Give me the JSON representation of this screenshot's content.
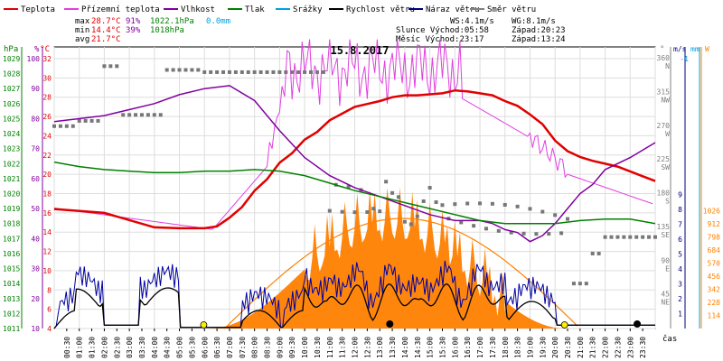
{
  "chart_data": {
    "type": "line",
    "title": "15.8.2017",
    "legend": {
      "placement": "top",
      "items": [
        {
          "label": "Teplota",
          "color": "#e00000"
        },
        {
          "label": "Přízemní teplota",
          "color": "#e040e0"
        },
        {
          "label": "Vlhkost",
          "color": "#8000a0"
        },
        {
          "label": "Tlak",
          "color": "#008000"
        },
        {
          "label": "Srážky",
          "color": "#00a0e0"
        },
        {
          "label": "Rychlost větru",
          "color": "#000000"
        },
        {
          "label": "Náraz větru",
          "color": "#000080"
        },
        {
          "label": "Směr větru",
          "color": "#808080"
        }
      ]
    },
    "stats": {
      "max": {
        "label": "max",
        "temp": "28.7°C",
        "hum": "91%",
        "press": "1022.1hPa",
        "rain": "0.0mm"
      },
      "min": {
        "label": "min",
        "temp": "14.4°C",
        "hum": "39%",
        "press": "1018hPa"
      },
      "avg": {
        "label": "avg",
        "temp": "21.7°C"
      }
    },
    "info": {
      "ws": "WS:4.1m/s",
      "wg": "WG:8.1m/s",
      "sun_rise": "Slunce Východ:05:58",
      "sun_set": "Západ:20:23",
      "moon_rise": "Měsíc  Východ:23:17",
      "moon_set": "Západ:13:24"
    },
    "axes": {
      "hpa_unit": "hPa",
      "pct_unit": "%",
      "temp_unit": "°C",
      "deg_unit": "°",
      "ms_unit": "m/s",
      "mm_unit": "mm",
      "w_unit": "W",
      "time_label": "čas",
      "hpa_ticks": [
        "1029",
        "1028",
        "1027",
        "1026",
        "1025",
        "1024",
        "1023",
        "1022",
        "1021",
        "1020",
        "1019",
        "1018",
        "1017",
        "1016",
        "1015",
        "1014",
        "1013",
        "1012",
        "1011"
      ],
      "pct_ticks": [
        "100",
        "90",
        "80",
        "70",
        "60",
        "50",
        "40",
        "30",
        "20",
        "10"
      ],
      "temp_ticks": [
        "32",
        "30",
        "28",
        "26",
        "24",
        "22",
        "20",
        "18",
        "16",
        "14",
        "12",
        "10",
        "8",
        "6",
        "4"
      ],
      "deg_ticks": [
        {
          "deg": "360",
          "dir": "N"
        },
        {
          "deg": "315",
          "dir": "NW"
        },
        {
          "deg": "270",
          "dir": "W"
        },
        {
          "deg": "225",
          "dir": "SW"
        },
        {
          "deg": "180",
          "dir": "S"
        },
        {
          "deg": "135",
          "dir": "SE"
        },
        {
          "deg": "90",
          "dir": "E"
        },
        {
          "deg": "45",
          "dir": "NE"
        }
      ],
      "ms_ticks": [
        "9",
        "8",
        "7",
        "6",
        "5",
        "4",
        "3",
        "2",
        "1"
      ],
      "ms_top": "-1",
      "w_ticks": [
        "1026",
        "912",
        "798",
        "684",
        "570",
        "456",
        "342",
        "228",
        "114"
      ],
      "time_ticks": [
        "00:30",
        "01:00",
        "01:30",
        "02:00",
        "02:30",
        "03:00",
        "03:30",
        "04:00",
        "04:30",
        "05:00",
        "05:30",
        "06:00",
        "06:30",
        "07:00",
        "07:30",
        "08:00",
        "08:30",
        "09:00",
        "09:30",
        "10:00",
        "10:30",
        "11:00",
        "11:30",
        "12:00",
        "12:30",
        "13:00",
        "13:30",
        "14:00",
        "14:30",
        "15:00",
        "15:30",
        "16:00",
        "16:30",
        "17:00",
        "17:30",
        "18:00",
        "18:30",
        "19:00",
        "19:30",
        "20:00",
        "20:30",
        "21:00",
        "21:30",
        "22:00",
        "22:30",
        "23:00",
        "23:30"
      ]
    },
    "series": [
      {
        "name": "Teplota",
        "color": "#e00000",
        "x": [
          0,
          2,
          4,
          5,
          6,
          6.5,
          7,
          7.5,
          8,
          8.5,
          9,
          9.5,
          10,
          10.5,
          11,
          11.5,
          12,
          12.5,
          13,
          13.5,
          14,
          14.5,
          15,
          15.5,
          16,
          16.5,
          17,
          17.5,
          18,
          18.5,
          19,
          19.5,
          20,
          20.5,
          21,
          21.5,
          22,
          22.5,
          23,
          23.5,
          24
        ],
        "y": [
          16.4,
          16.0,
          14.5,
          14.4,
          14.4,
          14.6,
          15.5,
          16.6,
          18.3,
          19.5,
          21.2,
          22.2,
          23.6,
          24.4,
          25.6,
          26.3,
          27.0,
          27.3,
          27.6,
          28.0,
          28.2,
          28.2,
          28.3,
          28.4,
          28.7,
          28.6,
          28.4,
          28.2,
          27.6,
          27.1,
          26.2,
          25.2,
          23.5,
          22.4,
          21.8,
          21.4,
          21.1,
          20.8,
          20.3,
          19.8,
          19.3
        ]
      },
      {
        "name": "Vlhkost",
        "color": "#8000a0",
        "x": [
          0,
          2,
          4,
          5,
          6,
          7,
          8,
          9,
          10,
          11,
          12,
          13,
          14,
          15,
          16,
          17,
          17.5,
          18,
          18.5,
          19,
          19.5,
          20,
          20.5,
          21,
          21.5,
          22,
          23,
          24
        ],
        "y": [
          79,
          81,
          85,
          88,
          90,
          91,
          86,
          76,
          67,
          61,
          57,
          54,
          51,
          48,
          46,
          46,
          45,
          43,
          42,
          39,
          41,
          45,
          50,
          55,
          58,
          63,
          67,
          72
        ]
      },
      {
        "name": "Tlak",
        "color": "#008000",
        "x": [
          0,
          1,
          2,
          3,
          4,
          5,
          6,
          7,
          8,
          9,
          10,
          11,
          12,
          13,
          14,
          15,
          16,
          17,
          18,
          19,
          20,
          21,
          22,
          23,
          24
        ],
        "y": [
          1022.1,
          1021.8,
          1021.6,
          1021.5,
          1021.4,
          1021.4,
          1021.5,
          1021.5,
          1021.6,
          1021.5,
          1021.2,
          1020.7,
          1020.2,
          1019.8,
          1019.4,
          1019.0,
          1018.6,
          1018.2,
          1018.0,
          1018.0,
          1018.0,
          1018.2,
          1018.3,
          1018.3,
          1018.0
        ]
      }
    ]
  }
}
